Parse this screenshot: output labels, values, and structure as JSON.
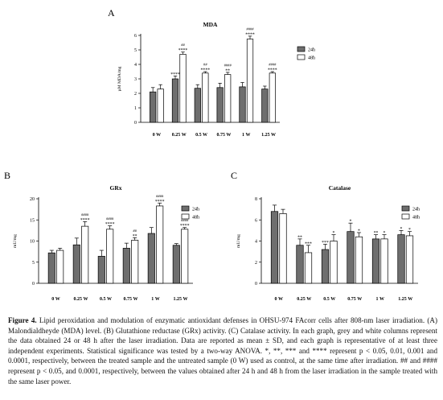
{
  "panels": [
    {
      "letter": "A",
      "chart_data": {
        "type": "bar",
        "title": "MDA",
        "ylabel": "µM MDA/mg",
        "xlabel": "",
        "ylim": [
          0,
          6
        ],
        "yticks": [
          0,
          1,
          2,
          3,
          4,
          5,
          6
        ],
        "grid": false,
        "legend_position": "right",
        "categories": [
          "0 W",
          "0.25 W",
          "0.5 W",
          "0.75 W",
          "1 W",
          "1.25 W"
        ],
        "series": [
          {
            "name": "24h",
            "color": "#6e6e6e",
            "values": [
              2.1,
              3.0,
              2.35,
              2.4,
              2.45,
              2.3
            ],
            "sd": [
              0.3,
              0.2,
              0.25,
              0.3,
              0.3,
              0.2
            ],
            "stars": [
              "",
              "****",
              "",
              "",
              "",
              ""
            ],
            "hashes": [
              "",
              "",
              "",
              "",
              "",
              ""
            ]
          },
          {
            "name": "48h",
            "color": "#ffffff",
            "values": [
              2.3,
              4.7,
              3.4,
              3.3,
              5.75,
              3.4
            ],
            "sd": [
              0.3,
              0.15,
              0.1,
              0.15,
              0.2,
              0.1
            ],
            "stars": [
              "",
              "****",
              "****",
              "**",
              "****",
              "****"
            ],
            "hashes": [
              "",
              "##",
              "##",
              "####",
              "####",
              "####"
            ]
          }
        ]
      }
    },
    {
      "letter": "B",
      "chart_data": {
        "type": "bar",
        "title": "GRx",
        "ylabel": "mU/mg",
        "xlabel": "",
        "ylim": [
          0,
          20
        ],
        "yticks": [
          0,
          5,
          10,
          15,
          20
        ],
        "grid": false,
        "legend_position": "right",
        "categories": [
          "0 W",
          "0.25 W",
          "0.5 W",
          "0.75 W",
          "1 W",
          "1.25 W"
        ],
        "series": [
          {
            "name": "24h",
            "color": "#6e6e6e",
            "values": [
              7.2,
              9.1,
              6.4,
              8.3,
              11.8,
              9.0
            ],
            "sd": [
              0.6,
              1.6,
              1.4,
              1.2,
              1.4,
              0.4
            ],
            "stars": [
              "",
              "",
              "",
              "",
              "",
              ""
            ],
            "hashes": [
              "",
              "",
              "",
              "",
              "",
              ""
            ]
          },
          {
            "name": "48h",
            "color": "#ffffff",
            "values": [
              7.8,
              13.5,
              12.8,
              10.2,
              18.3,
              12.8
            ],
            "sd": [
              0.5,
              1.1,
              0.8,
              0.6,
              0.7,
              0.4
            ],
            "stars": [
              "",
              "****",
              "****",
              "**",
              "****",
              "****"
            ],
            "hashes": [
              "",
              "####",
              "####",
              "##",
              "####",
              "####"
            ]
          }
        ]
      }
    },
    {
      "letter": "C",
      "chart_data": {
        "type": "bar",
        "title": "Catalase",
        "ylabel": "mU/mg",
        "xlabel": "",
        "ylim": [
          0,
          8
        ],
        "yticks": [
          0,
          2,
          4,
          6,
          8
        ],
        "grid": false,
        "legend_position": "right",
        "categories": [
          "0 W",
          "0.25 W",
          "0.5 W",
          "0.75 W",
          "1 W",
          "1.25 W"
        ],
        "series": [
          {
            "name": "24h",
            "color": "#6e6e6e",
            "values": [
              6.8,
              3.6,
              3.2,
              4.9,
              4.2,
              4.6
            ],
            "sd": [
              0.6,
              0.6,
              0.5,
              0.8,
              0.4,
              0.4
            ],
            "stars": [
              "",
              "**",
              "***",
              "*",
              "**",
              "*"
            ],
            "hashes": [
              "",
              "",
              "",
              "",
              "",
              ""
            ]
          },
          {
            "name": "48h",
            "color": "#ffffff",
            "values": [
              6.6,
              2.9,
              4.0,
              4.4,
              4.2,
              4.5
            ],
            "sd": [
              0.4,
              0.7,
              0.6,
              0.4,
              0.4,
              0.4
            ],
            "stars": [
              "",
              "***",
              "*",
              "*",
              "*",
              "*"
            ],
            "hashes": [
              "",
              "",
              "",
              "",
              "",
              ""
            ]
          }
        ]
      }
    }
  ],
  "caption": {
    "label": "Figure 4.",
    "text": " Lipid peroxidation and modulation of enzymatic antioxidant defenses in OHSU-974 FAcorr cells after 808-nm laser irradiation. (A) Malondialdheyde (MDA) level. (B) Glutathione reductase (GRx) activity. (C) Catalase activity. In each graph, grey and white columns represent the data obtained 24 or 48 h after the laser irradiation. Data are reported as mean ± SD, and each graph is representative of at least three independent experiments. Statistical significance was tested by a two-way ANOVA. *, **, *** and **** represent p < 0.05, 0.01, 0.001 and 0.0001, respectively, between the treated sample and the untreated sample (0 W) used as control, at the same time after irradiation. ## and #### represent p < 0.05, and 0.0001, respectively, between the values obtained after 24 h and 48 h from the laser irradiation in the sample treated with the same laser power."
  }
}
